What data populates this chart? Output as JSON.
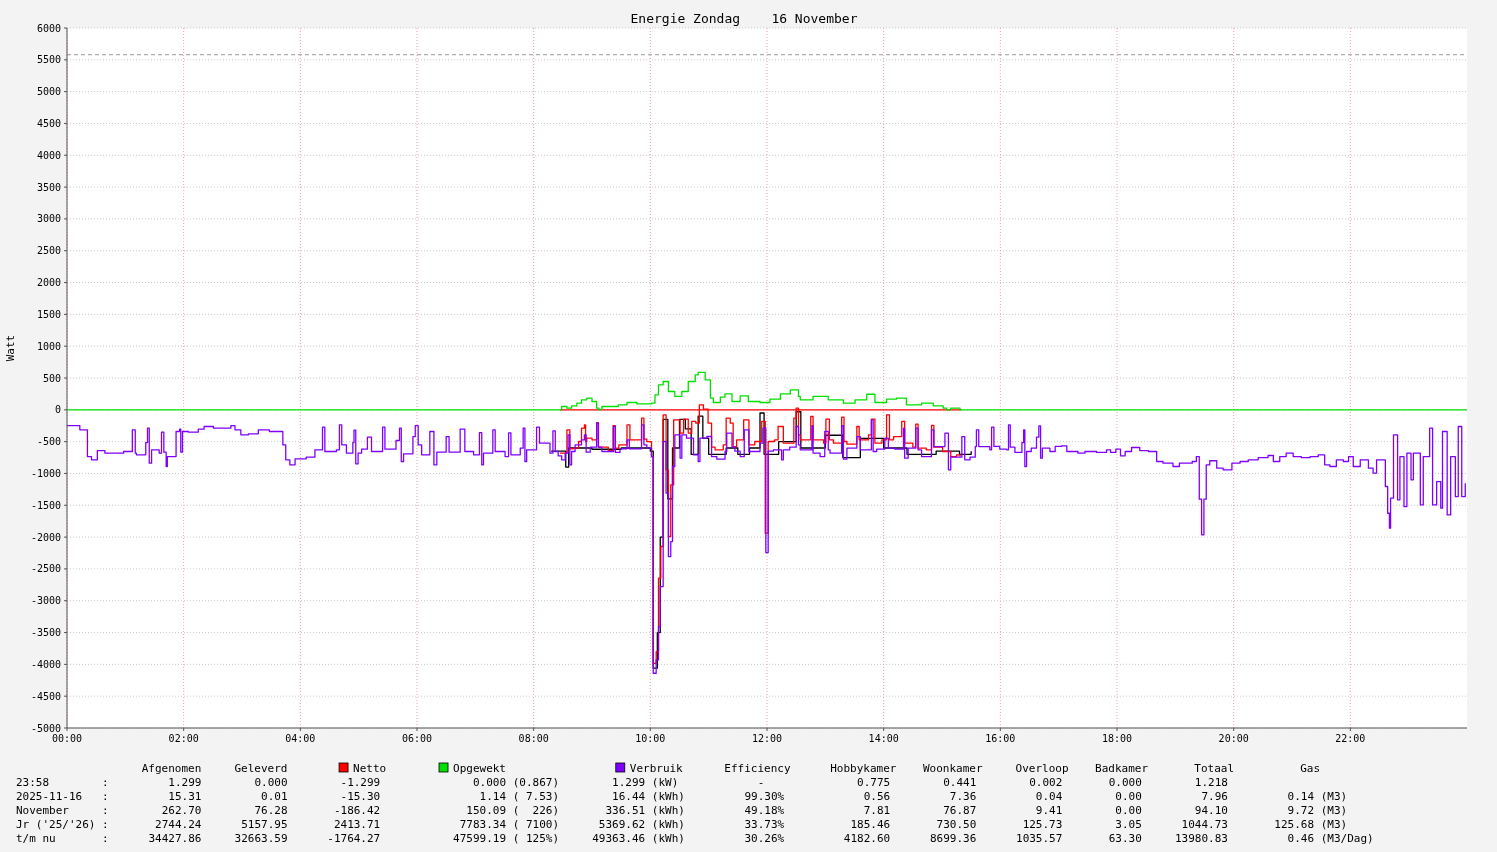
{
  "chart_data": {
    "type": "step",
    "title": "Energie Zondag    16 November",
    "ylabel": "Watt",
    "xlim": [
      0,
      24
    ],
    "xticks": [
      {
        "value": 0,
        "label": "00:00"
      },
      {
        "value": 2,
        "label": "02:00"
      },
      {
        "value": 4,
        "label": "04:00"
      },
      {
        "value": 6,
        "label": "06:00"
      },
      {
        "value": 8,
        "label": "08:00"
      },
      {
        "value": 10,
        "label": "10:00"
      },
      {
        "value": 12,
        "label": "12:00"
      },
      {
        "value": 14,
        "label": "14:00"
      },
      {
        "value": 16,
        "label": "16:00"
      },
      {
        "value": 18,
        "label": "18:00"
      },
      {
        "value": 20,
        "label": "20:00"
      },
      {
        "value": 22,
        "label": "22:00"
      }
    ],
    "ylim": [
      -5000,
      6000
    ],
    "yticks": [
      -5000,
      -4500,
      -4000,
      -3500,
      -3000,
      -2500,
      -2000,
      -1500,
      -1000,
      -500,
      0,
      500,
      1000,
      1500,
      2000,
      2500,
      3000,
      3500,
      4000,
      4500,
      5000,
      5500,
      6000
    ],
    "grid": true,
    "legend": "bottom",
    "ref_lines": [
      {
        "axis": "y",
        "value": 5580,
        "color": "#999999",
        "line_style": "dashed"
      }
    ],
    "series": [
      {
        "color": "#000000",
        "x": [
          8.3,
          8.55,
          8.6,
          9.0,
          9.5,
          10.0,
          10.05,
          10.12,
          10.17,
          10.22,
          10.3,
          10.38,
          10.5,
          10.6,
          10.7,
          10.82,
          10.9,
          11.0,
          11.3,
          11.5,
          11.7,
          11.88,
          11.95,
          12.2,
          12.5,
          12.58,
          13.0,
          13.3,
          13.6,
          14.0,
          14.4,
          14.9,
          15.3,
          15.5
        ],
        "values": [
          -650,
          -900,
          -600,
          -620,
          -600,
          -650,
          -4060,
          -3500,
          -2000,
          -150,
          -1400,
          -600,
          -150,
          -300,
          -700,
          -100,
          -450,
          -700,
          -600,
          -700,
          -600,
          -50,
          -700,
          -500,
          -30,
          -600,
          -400,
          -750,
          -450,
          -600,
          -700,
          -650,
          -700,
          -650
        ]
      },
      {
        "color": "#ff0000",
        "x": [
          8.45,
          15.33
        ],
        "values": [
          0,
          0
        ]
      },
      {
        "name": "Netto",
        "color": "#ff0000",
        "x": [
          8.45,
          8.57,
          8.62,
          8.68,
          8.77,
          8.82,
          8.87,
          8.89,
          8.91,
          9.0,
          9.08,
          9.11,
          9.22,
          9.28,
          9.36,
          9.4,
          9.46,
          9.6,
          9.65,
          9.74,
          9.85,
          9.89,
          9.94,
          10.02,
          10.05,
          10.1,
          10.14,
          10.18,
          10.22,
          10.27,
          10.31,
          10.35,
          10.4,
          10.51,
          10.57,
          10.65,
          10.71,
          10.78,
          10.84,
          10.91,
          10.99,
          11.05,
          11.11,
          11.25,
          11.3,
          11.37,
          11.42,
          11.48,
          11.6,
          11.69,
          11.79,
          11.91,
          11.97,
          12.02,
          12.13,
          12.19,
          12.28,
          12.46,
          12.5,
          12.54,
          12.57,
          12.75,
          12.79,
          12.97,
          13.01,
          13.07,
          13.14,
          13.28,
          13.32,
          13.37,
          13.54,
          13.58,
          13.74,
          13.79,
          13.85,
          13.97,
          14.05,
          14.1,
          14.17,
          14.31,
          14.36,
          14.5,
          14.55,
          14.59,
          14.73,
          14.82,
          14.86,
          15.01,
          15.15,
          15.25,
          15.31
        ],
        "values": [
          -680,
          -314,
          -613,
          -603,
          -498,
          -288,
          -236,
          -498,
          -445,
          -472,
          -200,
          -587,
          -587,
          -640,
          -250,
          -603,
          -550,
          -236,
          -472,
          -472,
          -131,
          -460,
          -500,
          -734,
          -3984,
          -3800,
          -2645,
          -2148,
          -79,
          -943,
          -1991,
          -1179,
          -157,
          -367,
          -147,
          -367,
          -183,
          -210,
          79,
          10,
          -210,
          -587,
          -629,
          -550,
          -131,
          -210,
          -577,
          -472,
          -157,
          -550,
          -498,
          -183,
          -1938,
          -498,
          -472,
          -262,
          -524,
          -131,
          26,
          -393,
          -472,
          -105,
          -472,
          -524,
          -147,
          -472,
          -524,
          -115,
          -498,
          -540,
          -262,
          -472,
          -393,
          -147,
          -524,
          -472,
          -79,
          -472,
          -420,
          -183,
          -524,
          -587,
          -225,
          -603,
          -629,
          -245,
          -587,
          -655,
          -734,
          -707,
          -734
        ]
      },
      {
        "name": "Opgewekt",
        "color": "#00e000",
        "x": [
          0,
          8.48,
          8.57,
          8.65,
          8.74,
          8.82,
          8.91,
          9.0,
          9.08,
          9.12,
          9.17,
          9.25,
          9.45,
          9.6,
          9.77,
          10.02,
          10.08,
          10.14,
          10.22,
          10.31,
          10.42,
          10.54,
          10.65,
          10.77,
          10.82,
          10.94,
          11.03,
          11.08,
          11.2,
          11.28,
          11.4,
          11.54,
          11.68,
          11.88,
          12.05,
          12.23,
          12.4,
          12.54,
          12.57,
          12.79,
          13.05,
          13.31,
          13.51,
          13.71,
          13.85,
          14.05,
          14.22,
          14.39,
          14.65,
          14.85,
          15.02,
          15.08,
          15.15,
          15.31,
          24
        ],
        "values": [
          0,
          52,
          26,
          63,
          105,
          157,
          183,
          131,
          26,
          0,
          52,
          52,
          79,
          115,
          94,
          105,
          236,
          393,
          445,
          288,
          210,
          288,
          445,
          550,
          587,
          472,
          183,
          115,
          200,
          250,
          131,
          220,
          131,
          115,
          168,
          250,
          314,
          210,
          157,
          210,
          157,
          105,
          157,
          245,
          115,
          168,
          183,
          79,
          105,
          63,
          26,
          0,
          26,
          0,
          0
        ]
      },
      {
        "name": "Verbruik",
        "color": "#7f00ff",
        "x": [
          0,
          0.22,
          0.35,
          0.42,
          0.52,
          0.65,
          0.97,
          1.12,
          1.17,
          1.19,
          1.35,
          1.38,
          1.41,
          1.45,
          1.58,
          1.62,
          1.66,
          1.7,
          1.72,
          1.87,
          1.93,
          1.95,
          1.98,
          2.08,
          2.25,
          2.35,
          2.51,
          2.81,
          2.88,
          2.98,
          3.11,
          3.28,
          3.47,
          3.7,
          3.75,
          3.82,
          3.91,
          4.1,
          4.25,
          4.38,
          4.42,
          4.62,
          4.67,
          4.71,
          4.79,
          4.9,
          4.92,
          4.95,
          4.99,
          5.05,
          5.15,
          5.22,
          5.41,
          5.45,
          5.64,
          5.7,
          5.73,
          5.77,
          5.93,
          5.97,
          6.02,
          6.08,
          6.22,
          6.29,
          6.34,
          6.5,
          6.55,
          6.74,
          6.82,
          6.97,
          7.07,
          7.11,
          7.14,
          7.3,
          7.34,
          7.51,
          7.57,
          7.61,
          7.77,
          7.82,
          7.85,
          7.88,
          8.05,
          8.1,
          8.28,
          8.33,
          8.37,
          8.42,
          8.48,
          8.54,
          8.59,
          8.62,
          8.65,
          8.71,
          8.82,
          8.87,
          8.9,
          8.97,
          9.08,
          9.11,
          9.17,
          9.37,
          9.4,
          9.48,
          9.6,
          9.64,
          9.82,
          9.85,
          9.89,
          9.94,
          10.02,
          10.05,
          10.1,
          10.14,
          10.17,
          10.22,
          10.27,
          10.31,
          10.35,
          10.38,
          10.42,
          10.51,
          10.54,
          10.62,
          10.74,
          10.82,
          10.85,
          10.97,
          11.05,
          11.14,
          11.28,
          11.31,
          11.4,
          11.45,
          11.54,
          11.61,
          11.69,
          11.88,
          11.93,
          11.98,
          12.02,
          12.11,
          12.25,
          12.28,
          12.39,
          12.5,
          12.54,
          12.57,
          12.77,
          12.79,
          12.91,
          12.99,
          13.05,
          13.08,
          13.28,
          13.31,
          13.37,
          13.54,
          13.6,
          13.79,
          13.82,
          13.88,
          14.02,
          14.08,
          14.19,
          14.34,
          14.36,
          14.42,
          14.55,
          14.59,
          14.65,
          14.82,
          14.86,
          15.05,
          15.11,
          15.15,
          15.34,
          15.39,
          15.48,
          15.57,
          15.59,
          15.63,
          15.82,
          15.85,
          15.89,
          15.99,
          16.11,
          16.14,
          16.17,
          16.25,
          16.37,
          16.4,
          16.42,
          16.45,
          16.53,
          16.62,
          16.66,
          16.69,
          16.72,
          16.85,
          16.94,
          17.05,
          17.14,
          17.33,
          17.45,
          17.65,
          17.82,
          17.89,
          17.98,
          18.06,
          18.14,
          18.25,
          18.39,
          18.54,
          18.68,
          18.79,
          18.96,
          19.07,
          19.2,
          19.29,
          19.36,
          19.41,
          19.45,
          19.49,
          19.53,
          19.59,
          19.71,
          19.82,
          19.97,
          20.11,
          20.25,
          20.42,
          20.59,
          20.68,
          20.79,
          20.9,
          21.02,
          21.16,
          21.31,
          21.45,
          21.56,
          21.65,
          21.76,
          21.88,
          21.97,
          22.05,
          22.17,
          22.31,
          22.39,
          22.45,
          22.6,
          22.64,
          22.67,
          22.69,
          22.74,
          22.81,
          22.85,
          22.92,
          22.97,
          23.04,
          23.08,
          23.2,
          23.25,
          23.36,
          23.41,
          23.48,
          23.55,
          23.58,
          23.66,
          23.72,
          23.8,
          23.85,
          23.91,
          23.97
        ],
        "values": [
          -247,
          -314,
          -734,
          -786,
          -640,
          -681,
          -655,
          -314,
          -681,
          -707,
          -514,
          -288,
          -838,
          -629,
          -681,
          -351,
          -665,
          -891,
          -734,
          -341,
          -304,
          -665,
          -341,
          -351,
          -304,
          -262,
          -288,
          -247,
          -314,
          -393,
          -378,
          -314,
          -341,
          -550,
          -786,
          -865,
          -770,
          -744,
          -629,
          -272,
          -655,
          -629,
          -236,
          -550,
          -681,
          -514,
          -320,
          -849,
          -681,
          -618,
          -430,
          -655,
          -272,
          -618,
          -482,
          -288,
          -812,
          -692,
          -420,
          -247,
          -550,
          -707,
          -341,
          -865,
          -665,
          -420,
          -665,
          -304,
          -655,
          -707,
          -357,
          -865,
          -681,
          -314,
          -655,
          -734,
          -362,
          -707,
          -603,
          -288,
          -812,
          -629,
          -272,
          -524,
          -681,
          -330,
          -655,
          -723,
          -786,
          -681,
          -393,
          -865,
          -655,
          -550,
          -472,
          -393,
          -665,
          -587,
          -210,
          -587,
          -655,
          -262,
          -670,
          -613,
          -472,
          -613,
          -613,
          -236,
          -550,
          -603,
          -734,
          -4140,
          -3931,
          -3407,
          -2778,
          -498,
          -1310,
          -2306,
          -2070,
          -891,
          -393,
          -760,
          -393,
          -445,
          -707,
          -812,
          -445,
          -419,
          -734,
          -776,
          -655,
          -367,
          -587,
          -650,
          -734,
          -314,
          -655,
          -524,
          -288,
          -2243,
          -650,
          -629,
          -786,
          -629,
          -587,
          -262,
          -550,
          -629,
          -250,
          -681,
          -734,
          -340,
          -629,
          -681,
          -250,
          -776,
          -603,
          -420,
          -629,
          -157,
          -655,
          -618,
          -445,
          -603,
          -618,
          -288,
          -760,
          -603,
          -288,
          -629,
          -734,
          -314,
          -577,
          -367,
          -943,
          -744,
          -420,
          -786,
          -744,
          -577,
          -314,
          -577,
          -629,
          -272,
          -576,
          -618,
          -629,
          -236,
          -587,
          -670,
          -514,
          -314,
          -891,
          -655,
          -603,
          -430,
          -252,
          -760,
          -603,
          -655,
          -576,
          -566,
          -655,
          -681,
          -655,
          -670,
          -629,
          -670,
          -618,
          -723,
          -655,
          -592,
          -640,
          -655,
          -812,
          -838,
          -891,
          -838,
          -838,
          -812,
          -734,
          -1404,
          -1965,
          -1404,
          -865,
          -800,
          -917,
          -943,
          -838,
          -812,
          -786,
          -750,
          -718,
          -812,
          -734,
          -681,
          -734,
          -750,
          -734,
          -707,
          -865,
          -891,
          -786,
          -812,
          -734,
          -891,
          -786,
          -917,
          -996,
          -786,
          -1205,
          -1625,
          -1860,
          -1389,
          -393,
          -1415,
          -734,
          -1520,
          -681,
          -1100,
          -681,
          -1494,
          -734,
          -288,
          -1494,
          -1127,
          -1546,
          -341,
          -1651,
          -734,
          -1363,
          -262,
          -1363,
          -1153
        ]
      }
    ],
    "annotations": [
      "Afgenomen",
      "Geleverd",
      "Efficiency",
      "Hobbykamer",
      "Woonkamer",
      "Overloop",
      "Badkamer",
      "Totaal",
      "Gas",
      "23:58        :         1.299        0.000        -1.299              0.000 (0.867)        1.299 (kW)            -              0.775        0.441        0.002       0.000        1.218",
      "2025-11-16   :         15.31         0.01        -15.30               1.14 ( 7.53)        16.44 (kWh)         99.30%            0.56         7.36         0.04        0.00         7.96         0.14 (M3)",
      "November     :        262.70        76.28       -186.42             150.09 (  226)       336.51 (kWh)         49.18%            7.81        76.87         9.41        0.00        94.10         9.72 (M3)",
      "Jr ('25/'26) :       2744.24      5157.95       2413.71            7783.34 ( 7100)      5369.62 (kWh)         33.73%          185.46       730.50       125.73        3.05      1044.73       125.68 (M3)",
      "t/m nu       :      34427.86     32663.59      -1764.27           47599.19 ( 125%)     49363.46 (kWh)         30.26%         4182.60      8699.36      1035.57       63.30     13980.83         0.46 (M3/Dag)"
    ]
  }
}
